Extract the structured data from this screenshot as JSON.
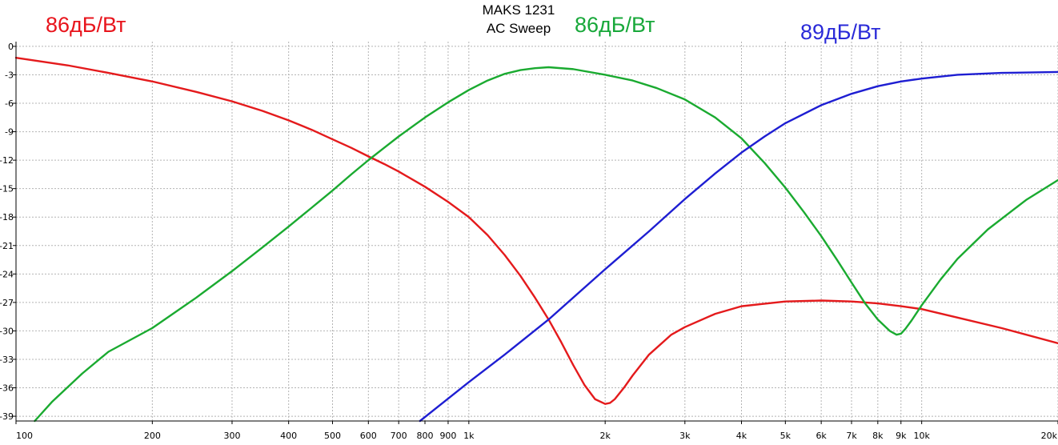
{
  "chart_data": {
    "type": "line",
    "title": "MAKS 1231",
    "subtitle": "AC Sweep",
    "xscale": "log",
    "xlim": [
      100,
      20000
    ],
    "ylim": [
      -39.5,
      0.5
    ],
    "grid": true,
    "yticks": [
      {
        "value": 0,
        "label": "0"
      },
      {
        "value": -3,
        "label": "-3"
      },
      {
        "value": -6,
        "label": "-6"
      },
      {
        "value": -9,
        "label": "-9"
      },
      {
        "value": -12,
        "label": "-12"
      },
      {
        "value": -15,
        "label": "-15"
      },
      {
        "value": -18,
        "label": "-18"
      },
      {
        "value": -21,
        "label": "-21"
      },
      {
        "value": -24,
        "label": "-24"
      },
      {
        "value": -27,
        "label": "-27"
      },
      {
        "value": -30,
        "label": "-30"
      },
      {
        "value": -33,
        "label": "-33"
      },
      {
        "value": -36,
        "label": "-36"
      },
      {
        "value": -39,
        "label": "-39"
      }
    ],
    "xticks": [
      {
        "value": 100,
        "label": "100"
      },
      {
        "value": 200,
        "label": "200"
      },
      {
        "value": 300,
        "label": "300"
      },
      {
        "value": 400,
        "label": "400"
      },
      {
        "value": 500,
        "label": "500"
      },
      {
        "value": 600,
        "label": "600"
      },
      {
        "value": 700,
        "label": "700"
      },
      {
        "value": 800,
        "label": "800"
      },
      {
        "value": 900,
        "label": "900"
      },
      {
        "value": 1000,
        "label": "1k"
      },
      {
        "value": 2000,
        "label": "2k"
      },
      {
        "value": 3000,
        "label": "3k"
      },
      {
        "value": 4000,
        "label": "4k"
      },
      {
        "value": 5000,
        "label": "5k"
      },
      {
        "value": 6000,
        "label": "6k"
      },
      {
        "value": 7000,
        "label": "7k"
      },
      {
        "value": 8000,
        "label": "8k"
      },
      {
        "value": 9000,
        "label": "9k"
      },
      {
        "value": 10000,
        "label": "10k"
      },
      {
        "value": 20000,
        "label": "20k"
      }
    ],
    "annotations": [
      {
        "text": "86дБ/Вт",
        "color": "#e8141c"
      },
      {
        "text": "86дБ/Вт",
        "color": "#18a83a"
      },
      {
        "text": "89дБ/Вт",
        "color": "#2a2ad8"
      }
    ],
    "series": [
      {
        "color": "#e41a1c",
        "x": [
          100,
          130,
          160,
          200,
          250,
          300,
          350,
          400,
          450,
          500,
          550,
          600,
          650,
          700,
          800,
          900,
          1000,
          1100,
          1200,
          1300,
          1400,
          1500,
          1600,
          1700,
          1800,
          1900,
          2000,
          2050,
          2100,
          2200,
          2300,
          2500,
          2800,
          3000,
          3500,
          4000,
          5000,
          6000,
          7000,
          8000,
          9000,
          10000,
          12000,
          15000,
          20000
        ],
        "y": [
          -1.2,
          -2.0,
          -2.8,
          -3.7,
          -4.8,
          -5.8,
          -6.8,
          -7.8,
          -8.8,
          -9.8,
          -10.7,
          -11.6,
          -12.4,
          -13.2,
          -14.8,
          -16.4,
          -18.0,
          -19.9,
          -22.0,
          -24.2,
          -26.5,
          -28.8,
          -31.2,
          -33.6,
          -35.7,
          -37.2,
          -37.7,
          -37.6,
          -37.2,
          -36.0,
          -34.7,
          -32.5,
          -30.4,
          -29.6,
          -28.2,
          -27.4,
          -26.9,
          -26.8,
          -26.9,
          -27.1,
          -27.4,
          -27.7,
          -28.6,
          -29.7,
          -31.3
        ]
      },
      {
        "color": "#1aaa30",
        "x": [
          110,
          120,
          140,
          160,
          200,
          250,
          300,
          350,
          400,
          450,
          500,
          550,
          600,
          650,
          700,
          800,
          900,
          1000,
          1100,
          1200,
          1300,
          1400,
          1500,
          1700,
          2000,
          2300,
          2600,
          3000,
          3500,
          4000,
          4500,
          5000,
          5500,
          6000,
          6500,
          7000,
          7500,
          8000,
          8500,
          8800,
          9000,
          9200,
          9500,
          10000,
          11000,
          12000,
          14000,
          17000,
          20000
        ],
        "y": [
          -39.5,
          -37.5,
          -34.5,
          -32.2,
          -29.7,
          -26.5,
          -23.7,
          -21.2,
          -19.0,
          -17.0,
          -15.2,
          -13.5,
          -12.0,
          -10.7,
          -9.5,
          -7.5,
          -5.9,
          -4.6,
          -3.6,
          -2.9,
          -2.5,
          -2.3,
          -2.2,
          -2.4,
          -3.0,
          -3.6,
          -4.4,
          -5.6,
          -7.5,
          -9.7,
          -12.3,
          -14.9,
          -17.5,
          -20.0,
          -22.5,
          -24.9,
          -27.1,
          -28.8,
          -30.0,
          -30.4,
          -30.3,
          -29.8,
          -28.9,
          -27.3,
          -24.6,
          -22.4,
          -19.3,
          -16.2,
          -14.1
        ]
      },
      {
        "color": "#1e1ed2",
        "x": [
          780,
          1000,
          1200,
          1500,
          2000,
          2500,
          3000,
          3500,
          4000,
          4500,
          5000,
          6000,
          7000,
          8000,
          9000,
          10000,
          12000,
          15000,
          20000
        ],
        "y": [
          -39.5,
          -35.4,
          -32.5,
          -28.8,
          -23.5,
          -19.5,
          -16.1,
          -13.4,
          -11.2,
          -9.5,
          -8.1,
          -6.2,
          -5.0,
          -4.2,
          -3.7,
          -3.4,
          -3.0,
          -2.8,
          -2.7
        ]
      }
    ]
  }
}
